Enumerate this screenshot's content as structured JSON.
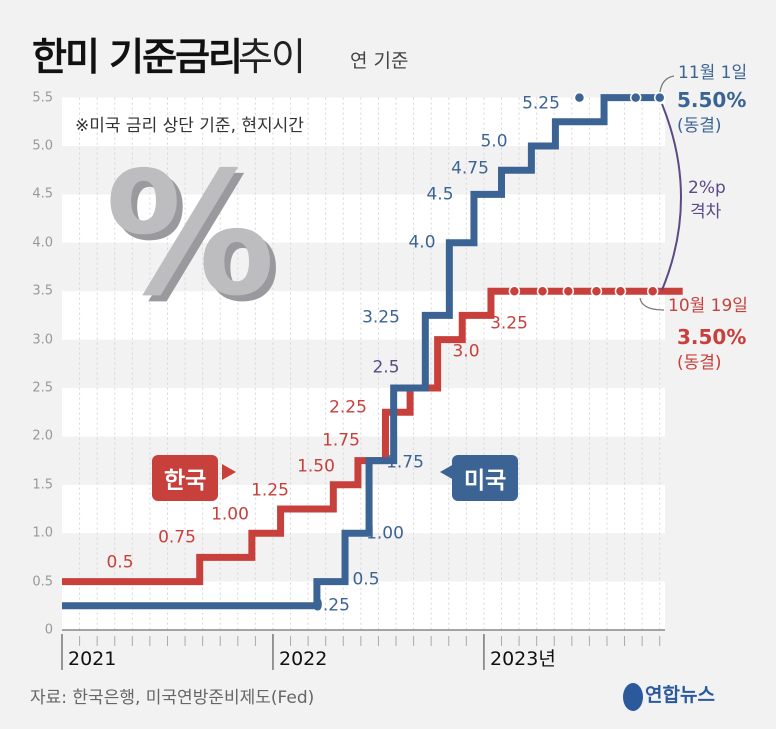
{
  "header": {
    "title_bold": "한미 기준금리",
    "title_light": "추이",
    "unit": "연 기준",
    "note": "※미국 금리 상단 기준, 현지시간"
  },
  "footer": {
    "source": "자료: 한국은행, 미국연방준비제도(Fed)",
    "logo": "연합뉴스"
  },
  "colors": {
    "korea": "#c8403c",
    "us": "#3b6494",
    "gap": "#5b4a84",
    "background": "#f2f2f3"
  },
  "decoration": {
    "percent_symbol": "%"
  },
  "badges": {
    "korea": "한국",
    "us": "미국"
  },
  "annotations": {
    "us_date": "11월 1일",
    "us_rate": "5.50%",
    "us_status": "(동결)",
    "gap_value": "2%p",
    "gap_label": "격차",
    "kr_date": "10월 19일",
    "kr_rate": "3.50%",
    "kr_status": "(동결)"
  },
  "chart_data": {
    "type": "line",
    "step": true,
    "title": "한미 기준금리 추이",
    "ylabel": "연 기준 (%)",
    "ylim": [
      0,
      5.5
    ],
    "yticks": [
      "0",
      "0.5",
      "1.0",
      "1.5",
      "2.0",
      "2.5",
      "3.0",
      "3.5",
      "4.0",
      "4.5",
      "5.0",
      "5.5"
    ],
    "xlim": [
      "2021-01-01",
      "2023-11-01"
    ],
    "xticks": [
      "2021",
      "2022",
      "2023년"
    ],
    "grid": true,
    "series": [
      {
        "name": "한국",
        "points": [
          [
            "2021-01-01",
            0.5
          ],
          [
            "2021-08-26",
            0.75
          ],
          [
            "2021-11-25",
            1.0
          ],
          [
            "2022-01-14",
            1.25
          ],
          [
            "2022-04-14",
            1.5
          ],
          [
            "2022-05-26",
            1.75
          ],
          [
            "2022-07-13",
            2.25
          ],
          [
            "2022-08-25",
            2.5
          ],
          [
            "2022-10-12",
            3.0
          ],
          [
            "2022-11-24",
            3.25
          ],
          [
            "2023-01-13",
            3.5
          ],
          [
            "2023-10-19",
            3.5
          ]
        ],
        "hold_dates": [
          "2023-02-23",
          "2023-04-11",
          "2023-05-25",
          "2023-07-13",
          "2023-08-24",
          "2023-10-19"
        ],
        "labels": [
          "0.5",
          "0.75",
          "1.00",
          "1.25",
          "1.50",
          "1.75",
          "2.25",
          "2.5",
          "3.0",
          "3.25"
        ]
      },
      {
        "name": "미국",
        "points": [
          [
            "2021-01-01",
            0.25
          ],
          [
            "2022-03-16",
            0.5
          ],
          [
            "2022-05-04",
            1.0
          ],
          [
            "2022-06-15",
            1.75
          ],
          [
            "2022-07-27",
            2.5
          ],
          [
            "2022-09-21",
            3.25
          ],
          [
            "2022-11-02",
            4.0
          ],
          [
            "2022-12-14",
            4.5
          ],
          [
            "2023-02-01",
            4.75
          ],
          [
            "2023-03-22",
            5.0
          ],
          [
            "2023-05-03",
            5.25
          ],
          [
            "2023-07-26",
            5.5
          ],
          [
            "2023-11-01",
            5.5
          ]
        ],
        "hold_dates": [
          "2023-06-14",
          "2023-09-20",
          "2023-11-01"
        ],
        "labels": [
          "0.25",
          "0.5",
          "1.00",
          "1.75",
          "3.25",
          "4.0",
          "4.5",
          "4.75",
          "5.0",
          "5.25"
        ]
      }
    ]
  }
}
